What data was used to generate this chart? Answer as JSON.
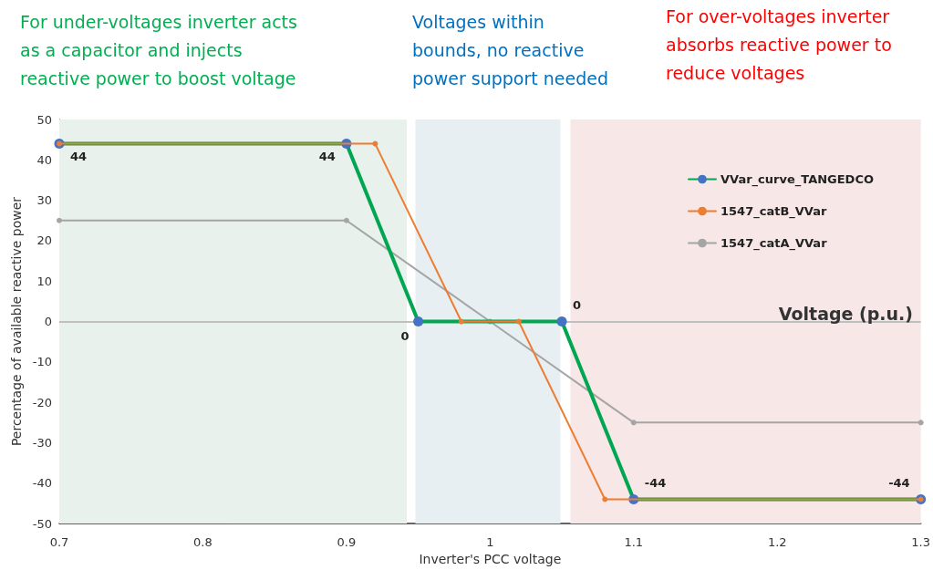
{
  "chart_data": {
    "type": "line",
    "xlabel": "Inverter's PCC voltage",
    "ylabel": "Percentage of available reactive power",
    "annotations": [
      "For under-voltages inverter acts\nas a capacitor and injects\nreactive power to boost voltage",
      "Voltages within\nbounds, no reactive\npower support needed",
      "For over-voltages inverter\nabsorbs reactive power to\nreduce voltages",
      "Voltage (p.u.)"
    ],
    "series": [
      {
        "name": "VVar_curve_TANGEDCO",
        "color": "#00a651",
        "colors": [
          "#4472c4",
          "#4472c4",
          "#4472c4",
          "#4472c4",
          "#4472c4",
          "#4472c4"
        ],
        "x": [
          0.7,
          0.9,
          0.95,
          1.05,
          1.1,
          1.3
        ],
        "values": [
          44,
          44,
          0,
          0,
          -44,
          -44
        ],
        "value_labels": [
          "44",
          "44",
          "0",
          "0",
          "-44",
          "-44"
        ]
      },
      {
        "name": "1547_catB_VVar",
        "color": "#ed7d31",
        "x": [
          0.7,
          0.92,
          0.98,
          1.02,
          1.08,
          1.3
        ],
        "values": [
          44,
          44,
          0,
          0,
          -44,
          -44
        ]
      },
      {
        "name": "1547_catA_VVar",
        "color": "#a5a5a5",
        "x": [
          0.7,
          0.9,
          1.0,
          1.1,
          1.3
        ],
        "values": [
          25,
          25,
          0,
          -25,
          -25
        ]
      }
    ],
    "xlim": [
      0.7,
      1.3
    ],
    "xticks": [
      0.7,
      0.8,
      0.9,
      1,
      1.1,
      1.2,
      1.3
    ],
    "ylim": [
      -50,
      50
    ],
    "yticks": [
      -50,
      -40,
      -30,
      -20,
      -10,
      0,
      10,
      20,
      30,
      40,
      50
    ],
    "bands": [
      {
        "axis": "x",
        "from": 0.7,
        "to": 0.942,
        "color": "#e8f1ec"
      },
      {
        "axis": "x",
        "from": 0.948,
        "to": 1.049,
        "color": "#e8eff3"
      },
      {
        "axis": "x",
        "from": 1.056,
        "to": 1.3,
        "color": "#f7e7e6"
      }
    ],
    "ref_lines": [
      {
        "axis": "y",
        "value": 0,
        "color": "#bfbfbf"
      }
    ],
    "grid": false,
    "legend": "top right",
    "marker": "circle",
    "line_style": "solid"
  }
}
